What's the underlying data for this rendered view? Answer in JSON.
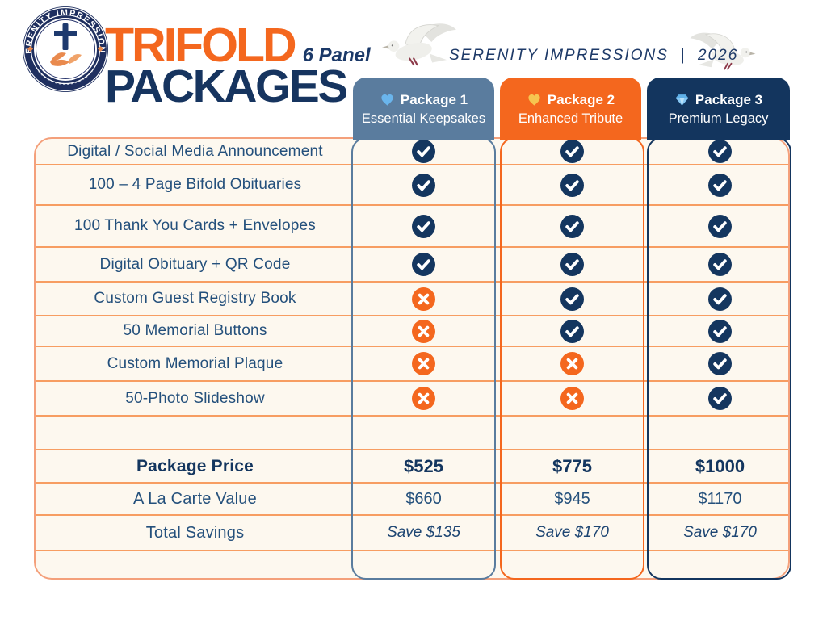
{
  "header": {
    "logo_arc_text": "SERENITY IMPRESSIONS",
    "title_word": "TRIFOLD",
    "title_sub": "6 Panel",
    "title_word2": "PACKAGES",
    "brand_name": "SERENITY IMPRESSIONS",
    "brand_divider": "|",
    "brand_year": "2026"
  },
  "packages": [
    {
      "label": "Package 1",
      "name": "Essential Keepsakes",
      "icon": "heart",
      "icon_color": "#6ab5ec",
      "color": "#5a7c9e"
    },
    {
      "label": "Package 2",
      "name": "Enhanced Tribute",
      "icon": "heart",
      "icon_color": "#f6c550",
      "color": "#f4671e"
    },
    {
      "label": "Package 3",
      "name": "Premium Legacy",
      "icon": "gem",
      "icon_color": "#5fb0e8",
      "color": "#13355e"
    }
  ],
  "features": [
    {
      "label": "Digital / Social Media Announcement",
      "included": [
        true,
        true,
        true
      ]
    },
    {
      "label": "100 – 4 Page Bifold Obituaries",
      "included": [
        true,
        true,
        true
      ]
    },
    {
      "label": "100 Thank You Cards + Envelopes",
      "included": [
        true,
        true,
        true
      ]
    },
    {
      "label": "Digital Obituary + QR Code",
      "included": [
        true,
        true,
        true
      ]
    },
    {
      "label": "Custom Guest Registry Book",
      "included": [
        false,
        true,
        true
      ]
    },
    {
      "label": "50 Memorial Buttons",
      "included": [
        false,
        true,
        true
      ]
    },
    {
      "label": "Custom Memorial Plaque",
      "included": [
        false,
        false,
        true
      ]
    },
    {
      "label": "50-Photo Slideshow",
      "included": [
        false,
        false,
        true
      ]
    }
  ],
  "summary": [
    {
      "label": "Package Price",
      "values": [
        "$525",
        "$775",
        "$1000"
      ],
      "emphasis": "bold"
    },
    {
      "label": "A La Carte Value",
      "values": [
        "$660",
        "$945",
        "$1170"
      ],
      "emphasis": "normal"
    },
    {
      "label": "Total Savings",
      "values": [
        "Save $135",
        "Save $170",
        "Save $170"
      ],
      "emphasis": "italic"
    }
  ],
  "colors": {
    "accent_orange": "#f4671e",
    "navy": "#14365f",
    "slate_blue": "#5a7c9e",
    "dark_navy": "#13355e",
    "cream_background": "#fdf8ef",
    "divider_orange": "#f79d62",
    "outer_border_salmon": "#f4a07b",
    "row_text_navy": "#24507c",
    "check_fill": "#14365f",
    "x_fill": "#f4671e"
  }
}
